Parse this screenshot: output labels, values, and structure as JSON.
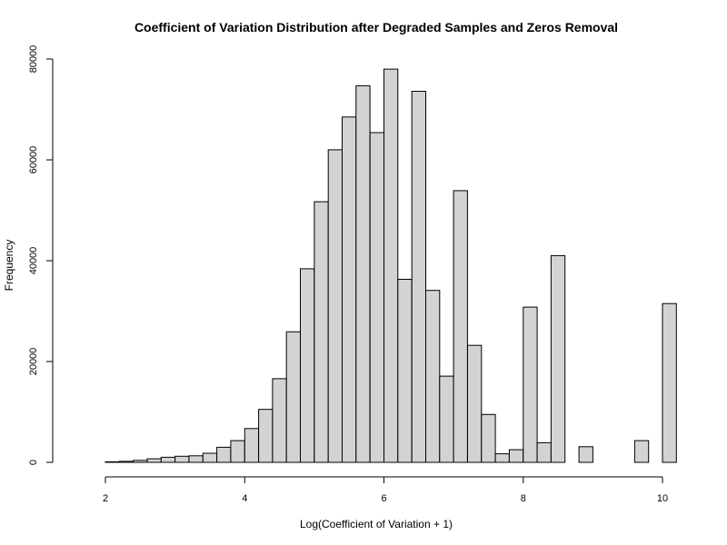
{
  "chart_data": {
    "type": "bar",
    "title": "Coefficient of Variation Distribution after Degraded Samples and Zeros Removal",
    "xlabel": "Log(Coefficient of Variation + 1)",
    "ylabel": "Frequency",
    "xlim": [
      1.6,
      10.2
    ],
    "ylim": [
      0,
      80000
    ],
    "bin_width": 0.2,
    "x_ticks": [
      2,
      4,
      6,
      8,
      10
    ],
    "y_ticks": [
      0,
      20000,
      40000,
      60000,
      80000
    ],
    "bins_start": [
      1.6,
      1.8,
      2.0,
      2.2,
      2.4,
      2.6,
      2.8,
      3.0,
      3.2,
      3.4,
      3.6,
      3.8,
      4.0,
      4.2,
      4.4,
      4.6,
      4.8,
      5.0,
      5.2,
      5.4,
      5.6,
      5.8,
      6.0,
      6.2,
      6.4,
      6.6,
      6.8,
      7.0,
      7.2,
      7.4,
      7.6,
      7.8,
      8.0,
      8.2,
      8.4,
      8.6,
      8.8,
      9.0,
      9.2,
      9.4,
      9.6,
      9.8,
      10.0
    ],
    "values": [
      0,
      0,
      100,
      200,
      400,
      700,
      1000,
      1200,
      1300,
      1800,
      3000,
      4300,
      6700,
      10500,
      16600,
      25900,
      38400,
      51700,
      62000,
      68500,
      74700,
      65400,
      78000,
      36300,
      73600,
      34100,
      17100,
      53900,
      23200,
      9500,
      1700,
      2500,
      30800,
      3900,
      41000,
      0,
      3100,
      0,
      0,
      0,
      4300,
      0,
      31500
    ],
    "grid": false,
    "legend": "none"
  }
}
